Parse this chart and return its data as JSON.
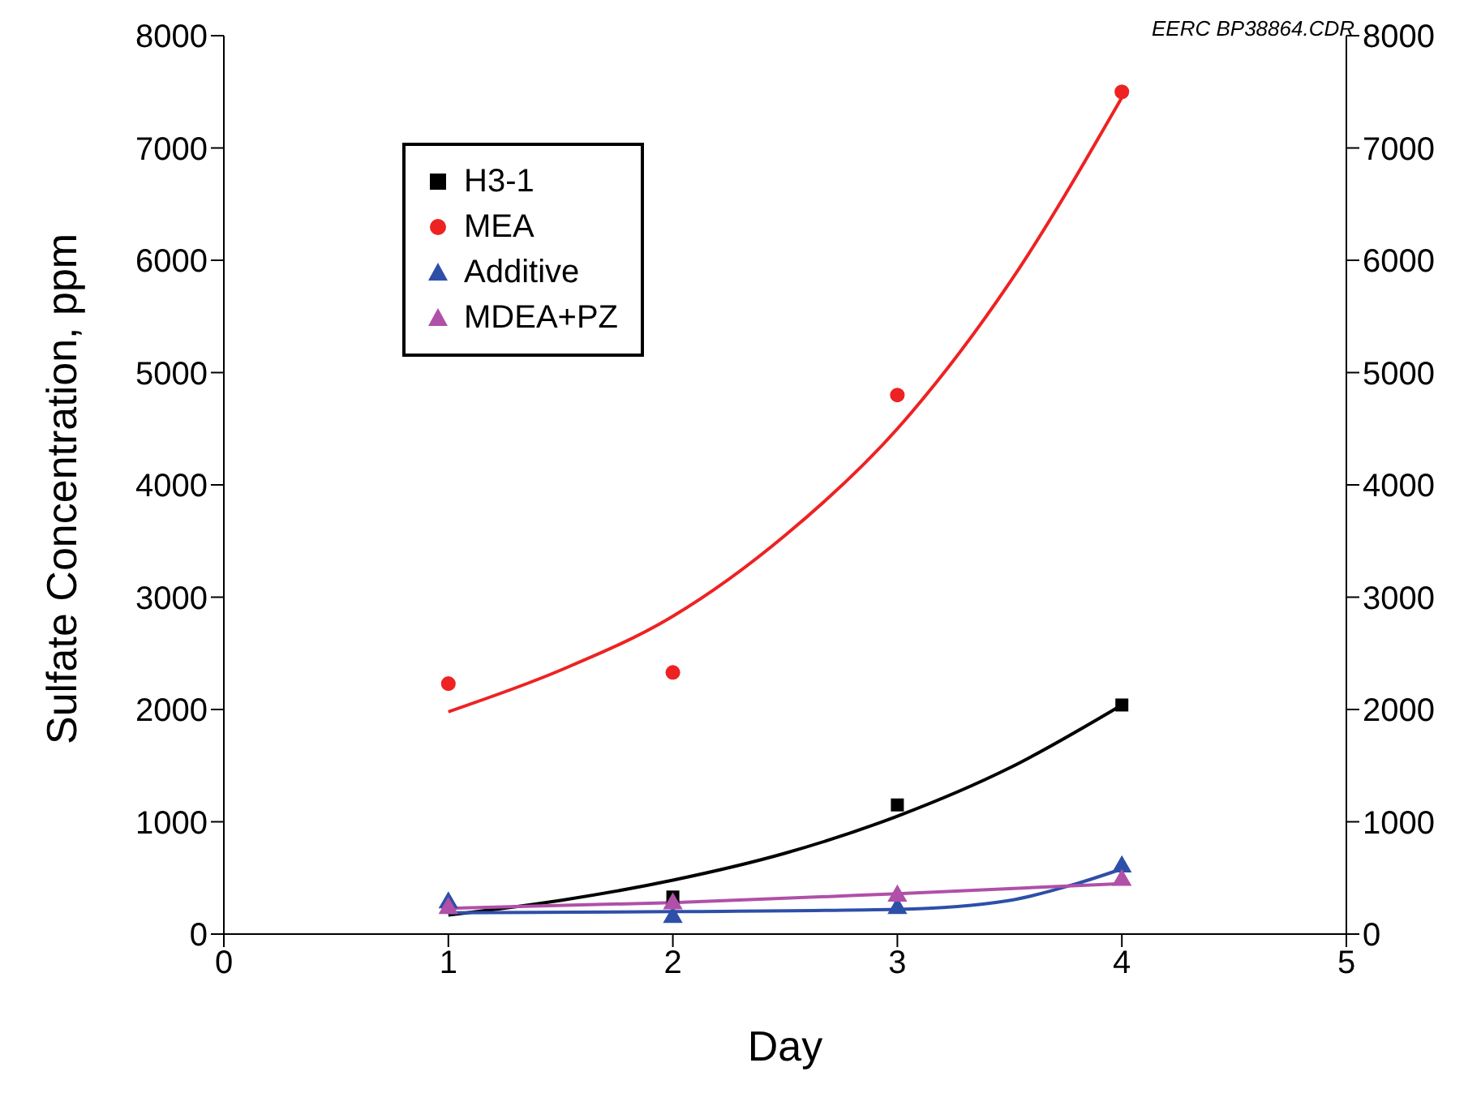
{
  "chart_data": {
    "type": "scatter",
    "xlabel": "Day",
    "ylabel": "Sulfate Concentration, ppm",
    "annotations": [
      "EERC BP38864.CDR"
    ],
    "x": [
      1,
      2,
      3,
      4
    ],
    "series": [
      {
        "name": "H3-1",
        "color": "#000000",
        "marker": "square",
        "values": [
          null,
          330,
          1150,
          2040
        ]
      },
      {
        "name": "MEA",
        "color": "#ee2222",
        "marker": "circle",
        "values": [
          2230,
          2330,
          4800,
          7500
        ]
      },
      {
        "name": "Additive",
        "color": "#2e4fa8",
        "marker": "triangle",
        "values": [
          280,
          150,
          230,
          600
        ]
      },
      {
        "name": "MDEA+PZ",
        "color": "#b050a8",
        "marker": "triangle",
        "values": [
          230,
          270,
          340,
          480
        ]
      },
      {
        "type": "line",
        "color": "#000000",
        "marker": "none",
        "x": [
          1,
          1.5,
          2,
          2.5,
          3,
          3.5,
          4
        ],
        "values": [
          170,
          300,
          480,
          720,
          1050,
          1480,
          2040
        ]
      },
      {
        "type": "line",
        "color": "#ee2222",
        "marker": "none",
        "x": [
          1,
          1.5,
          2,
          2.5,
          3,
          3.5,
          4
        ],
        "values": [
          1980,
          2350,
          2830,
          3550,
          4500,
          5800,
          7450
        ]
      },
      {
        "type": "line",
        "color": "#2e4fa8",
        "marker": "none",
        "x": [
          1,
          2,
          3,
          3.5,
          3.8,
          4
        ],
        "values": [
          190,
          200,
          220,
          300,
          450,
          580
        ]
      },
      {
        "type": "line",
        "color": "#b050a8",
        "marker": "none",
        "x": [
          1,
          2,
          3,
          4
        ],
        "values": [
          230,
          280,
          360,
          450
        ]
      }
    ],
    "xlim": [
      0,
      5
    ],
    "xticks": [
      0,
      1,
      2,
      3,
      4,
      5
    ],
    "ylim": [
      0,
      8000
    ],
    "yticks": [
      0,
      1000,
      2000,
      3000,
      4000,
      5000,
      6000,
      7000,
      8000
    ],
    "y2lim": [
      0,
      8000
    ],
    "y2ticks": [
      0,
      1000,
      2000,
      3000,
      4000,
      5000,
      6000,
      7000,
      8000
    ],
    "grid": false,
    "legend": "top left"
  }
}
